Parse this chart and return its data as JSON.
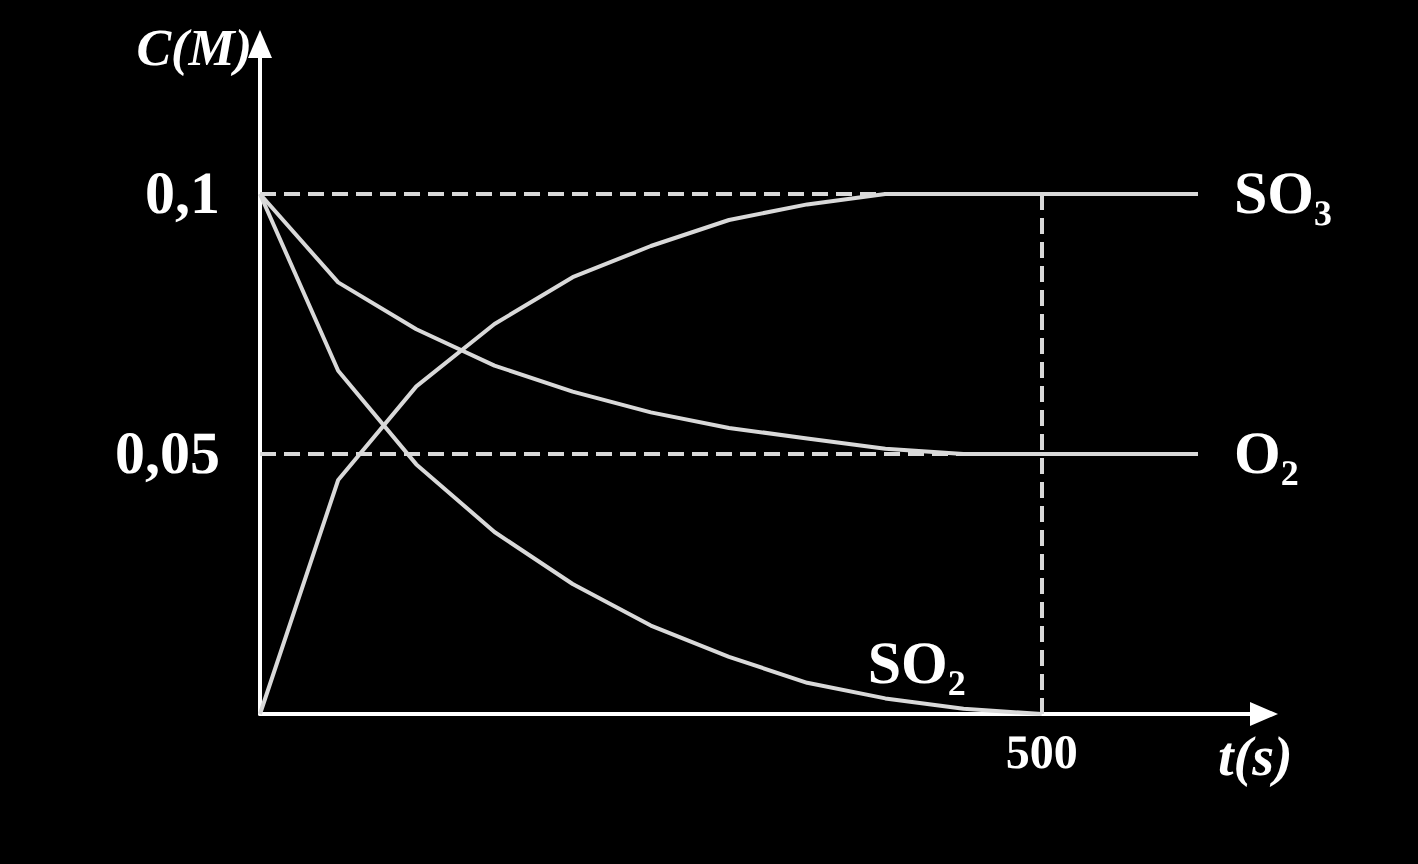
{
  "chart_data": {
    "type": "line",
    "xlabel": "t(s)",
    "ylabel": "C(M)",
    "categories": [
      null,
      null,
      null,
      null,
      null,
      null,
      null,
      null,
      null,
      null,
      "500",
      null,
      null
    ],
    "series": [
      {
        "name": "SO₃",
        "color": "#d9d9d9",
        "values": [
          0,
          0.045,
          0.063,
          0.075,
          0.084,
          0.09,
          0.095,
          0.098,
          0.1,
          0.1,
          0.1,
          0.1,
          0.1
        ]
      },
      {
        "name": "O₂",
        "color": "#d9d9d9",
        "values": [
          0.1,
          0.083,
          0.074,
          0.067,
          0.062,
          0.058,
          0.055,
          0.053,
          0.051,
          0.05,
          0.05,
          0.05,
          0.05
        ]
      },
      {
        "name": "SO₂",
        "color": "#d9d9d9",
        "values": [
          0.1,
          0.066,
          0.048,
          0.035,
          0.025,
          0.017,
          0.011,
          0.006,
          0.003,
          0.001,
          0,
          null,
          null
        ]
      }
    ],
    "ylim": [
      0,
      0.12
    ],
    "yticks": [
      {
        "value": 0.05,
        "label": "0,05"
      },
      {
        "value": 0.1,
        "label": "0,1"
      }
    ],
    "ref_lines": [
      {
        "axis": "y",
        "value": 0.1,
        "color": "#d9d9d9",
        "line_style": "dashed"
      },
      {
        "axis": "y",
        "value": 0.05,
        "color": "#d9d9d9",
        "line_style": "dashed"
      },
      {
        "axis": "x",
        "value": "500",
        "color": "#d9d9d9",
        "line_style": "dashed"
      }
    ],
    "marker": "none",
    "line_style": "solid",
    "grid": false,
    "legend": false
  }
}
